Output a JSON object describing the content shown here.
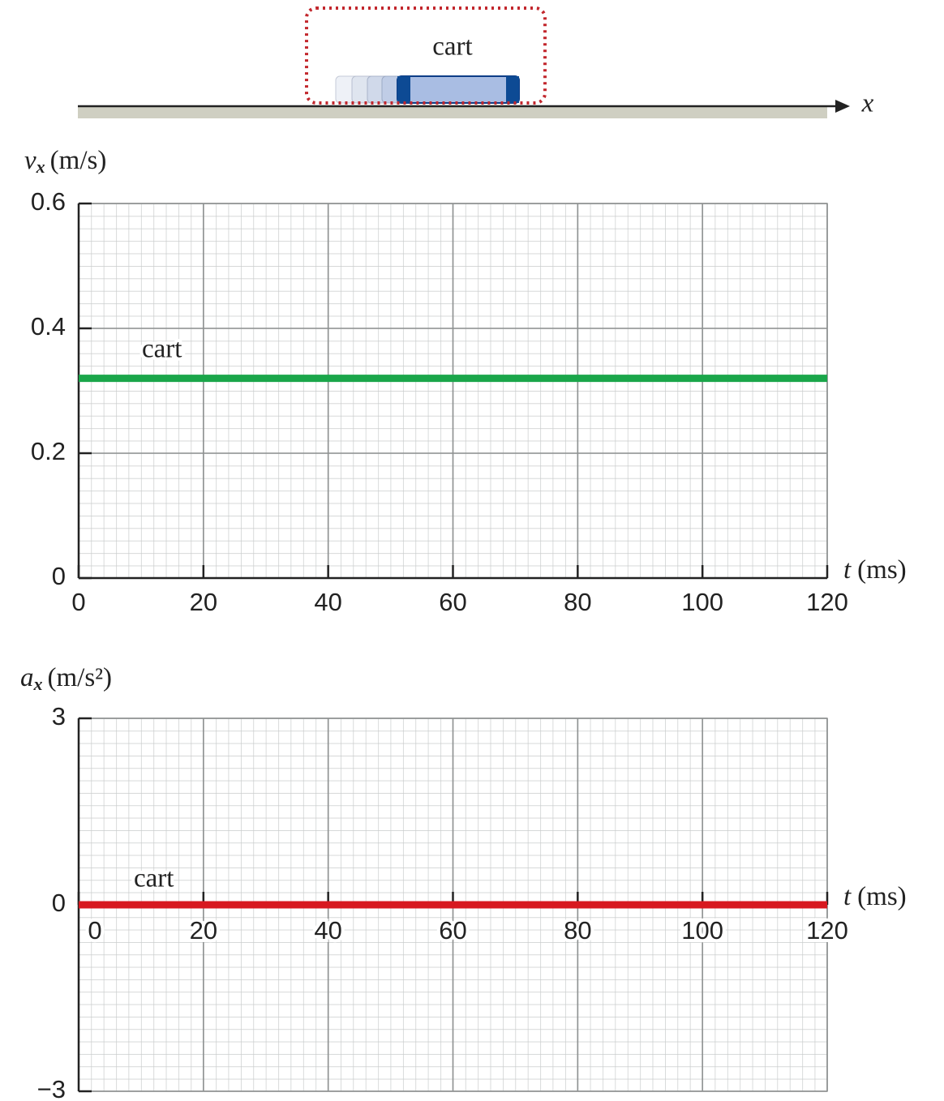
{
  "diagram": {
    "label": "cart",
    "axis_label": "x"
  },
  "chart_data": [
    {
      "type": "line",
      "y_symbol": "v",
      "y_subscript": "x",
      "y_label": "(m/s)",
      "x_symbol": "t",
      "x_label": "(ms)",
      "x": [
        0,
        120
      ],
      "series": [
        {
          "name": "cart",
          "color": "#1aa64a",
          "values": [
            0.32,
            0.32
          ]
        }
      ],
      "xlim": [
        0,
        120
      ],
      "xticks": [
        0,
        20,
        40,
        60,
        80,
        100,
        120
      ],
      "ylim": [
        0,
        0.6
      ],
      "yticks": [
        0,
        0.2,
        0.4,
        0.6
      ],
      "grid": true
    },
    {
      "type": "line",
      "y_symbol": "a",
      "y_subscript": "x",
      "y_label": "(m/s²)",
      "x_symbol": "t",
      "x_label": "(ms)",
      "x": [
        0,
        120
      ],
      "series": [
        {
          "name": "cart",
          "color": "#d71920",
          "values": [
            0,
            0
          ]
        }
      ],
      "xlim": [
        0,
        120
      ],
      "xticks": [
        0,
        20,
        40,
        60,
        80,
        100,
        120
      ],
      "ylim": [
        -3,
        3
      ],
      "yticks": [
        {
          "value": -3,
          "label": "−3"
        },
        0,
        3
      ],
      "grid": true
    }
  ]
}
